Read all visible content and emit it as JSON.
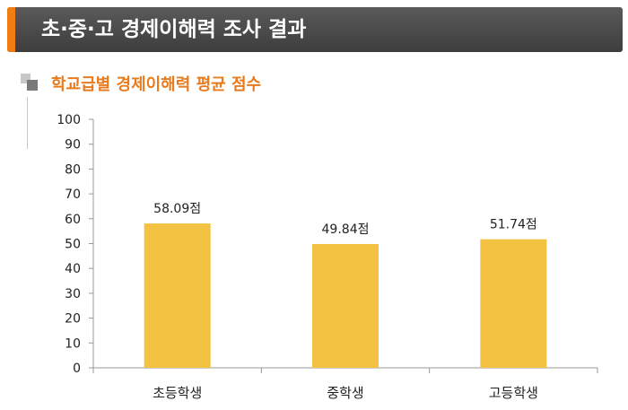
{
  "header": {
    "title": "초·중·고 경제이해력 조사 결과"
  },
  "colors": {
    "accent": "#f07c12",
    "subtitle": "#e87b1e",
    "bar": "#f3c242",
    "axis": "#999999"
  },
  "chart_data": {
    "type": "bar",
    "title": "학교급별 경제이해력 평균 점수",
    "categories": [
      "초등학생",
      "중학생",
      "고등학생"
    ],
    "values": [
      58.09,
      49.84,
      51.74
    ],
    "value_labels": [
      "58.09점",
      "49.84점",
      "51.74점"
    ],
    "ylim": [
      0,
      100
    ],
    "yticks": [
      "0",
      "10",
      "20",
      "30",
      "40",
      "50",
      "60",
      "70",
      "80",
      "90",
      "100"
    ],
    "xlabel": "",
    "ylabel": "",
    "grid": false,
    "legend": "none"
  }
}
